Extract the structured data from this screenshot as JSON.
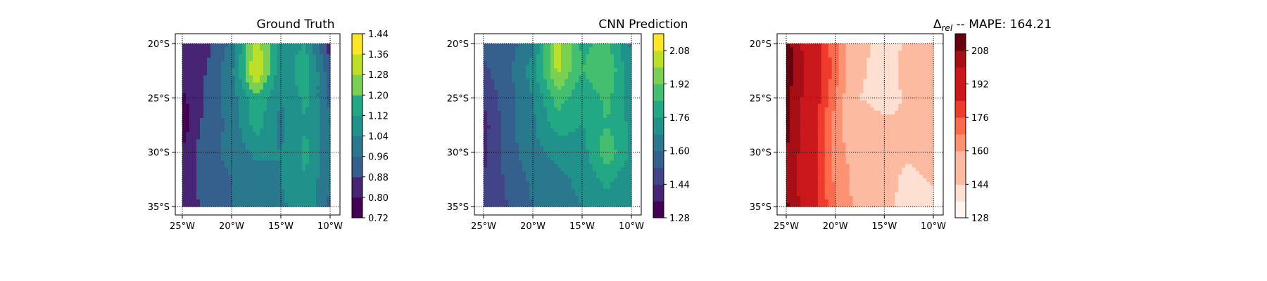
{
  "figure": {
    "panels": [
      {
        "title": "Ground Truth",
        "colorbar_ticks": [
          "1.44",
          "1.36",
          "1.28",
          "1.20",
          "1.12",
          "1.04",
          "0.96",
          "0.88",
          "0.80",
          "0.72"
        ]
      },
      {
        "title": "CNN Prediction",
        "colorbar_ticks": [
          "2.08",
          "1.92",
          "1.76",
          "1.60",
          "1.44",
          "1.28"
        ]
      },
      {
        "title_prefix": "Δ",
        "title_sub": "rel",
        "title_suffix": " -- MAPE: 164.21",
        "colorbar_ticks": [
          "208",
          "192",
          "176",
          "160",
          "144",
          "128"
        ]
      }
    ],
    "lat_ticks": [
      "20°S",
      "25°S",
      "30°S",
      "35°S"
    ],
    "lon_ticks": [
      "25°W",
      "20°W",
      "15°W",
      "10°W"
    ]
  },
  "chart_data": [
    {
      "type": "heatmap",
      "title": "Ground Truth",
      "colormap": "viridis",
      "lon_range": [
        -25,
        -10
      ],
      "lat_range": [
        -35,
        -20
      ],
      "xticks": [
        "25°W",
        "20°W",
        "15°W",
        "10°W"
      ],
      "yticks": [
        "20°S",
        "25°S",
        "30°S",
        "35°S"
      ],
      "levels": [
        0.72,
        0.8,
        0.88,
        0.96,
        1.04,
        1.12,
        1.2,
        1.28,
        1.36,
        1.44
      ],
      "lon": [
        -25,
        -22.5,
        -20,
        -17.5,
        -15,
        -12.5,
        -10
      ],
      "lat": [
        -20,
        -22.5,
        -25,
        -27.5,
        -30,
        -32.5,
        -35
      ],
      "values": [
        [
          0.8,
          0.86,
          0.98,
          1.32,
          1.08,
          1.12,
          0.84
        ],
        [
          0.84,
          0.88,
          1.02,
          1.38,
          1.06,
          1.18,
          0.9
        ],
        [
          0.78,
          0.9,
          1.0,
          1.18,
          1.04,
          1.14,
          0.94
        ],
        [
          0.74,
          0.92,
          0.98,
          1.16,
          1.02,
          1.12,
          0.96
        ],
        [
          0.82,
          0.94,
          0.98,
          1.06,
          1.04,
          1.14,
          0.98
        ],
        [
          0.82,
          0.92,
          0.96,
          1.0,
          1.04,
          1.12,
          0.96
        ],
        [
          0.84,
          0.9,
          0.96,
          0.98,
          1.02,
          1.1,
          0.94
        ]
      ]
    },
    {
      "type": "heatmap",
      "title": "CNN Prediction",
      "colormap": "viridis",
      "lon_range": [
        -25,
        -10
      ],
      "lat_range": [
        -35,
        -20
      ],
      "xticks": [
        "25°W",
        "20°W",
        "15°W",
        "10°W"
      ],
      "yticks": [
        "20°S",
        "25°S",
        "30°S",
        "35°S"
      ],
      "levels": [
        1.28,
        1.36,
        1.44,
        1.52,
        1.6,
        1.68,
        1.76,
        1.84,
        1.92,
        2.0,
        2.08,
        2.16
      ],
      "lon": [
        -25,
        -22.5,
        -20,
        -17.5,
        -15,
        -12.5,
        -10
      ],
      "lat": [
        -20,
        -22.5,
        -25,
        -27.5,
        -30,
        -32.5,
        -35
      ],
      "values": [
        [
          1.54,
          1.56,
          1.66,
          2.04,
          1.82,
          1.86,
          1.66
        ],
        [
          1.5,
          1.58,
          1.72,
          2.02,
          1.84,
          1.92,
          1.7
        ],
        [
          1.46,
          1.56,
          1.68,
          1.88,
          1.78,
          1.86,
          1.72
        ],
        [
          1.4,
          1.58,
          1.66,
          1.8,
          1.76,
          1.84,
          1.74
        ],
        [
          1.42,
          1.56,
          1.66,
          1.7,
          1.72,
          1.9,
          1.74
        ],
        [
          1.44,
          1.54,
          1.62,
          1.66,
          1.7,
          1.78,
          1.7
        ],
        [
          1.46,
          1.52,
          1.6,
          1.64,
          1.68,
          1.74,
          1.68
        ]
      ]
    },
    {
      "type": "heatmap",
      "title": "Δrel -- MAPE: 164.21",
      "colormap": "Reds",
      "lon_range": [
        -25,
        -10
      ],
      "lat_range": [
        -35,
        -20
      ],
      "xticks": [
        "25°W",
        "20°W",
        "15°W",
        "10°W"
      ],
      "yticks": [
        "20°S",
        "25°S",
        "30°S",
        "35°S"
      ],
      "levels": [
        128,
        136,
        144,
        152,
        160,
        168,
        176,
        184,
        192,
        200,
        208,
        216
      ],
      "lon": [
        -25,
        -22.5,
        -20,
        -17.5,
        -15,
        -12.5,
        -10
      ],
      "lat": [
        -20,
        -22.5,
        -25,
        -27.5,
        -30,
        -32.5,
        -35
      ],
      "values": [
        [
          212,
          192,
          170,
          148,
          140,
          146,
          156
        ],
        [
          214,
          196,
          172,
          146,
          138,
          148,
          158
        ],
        [
          210,
          194,
          168,
          144,
          140,
          146,
          156
        ],
        [
          212,
          190,
          164,
          150,
          146,
          144,
          152
        ],
        [
          208,
          192,
          164,
          154,
          148,
          146,
          150
        ],
        [
          206,
          190,
          166,
          156,
          150,
          140,
          146
        ],
        [
          210,
          192,
          168,
          156,
          150,
          136,
          140
        ]
      ]
    }
  ]
}
